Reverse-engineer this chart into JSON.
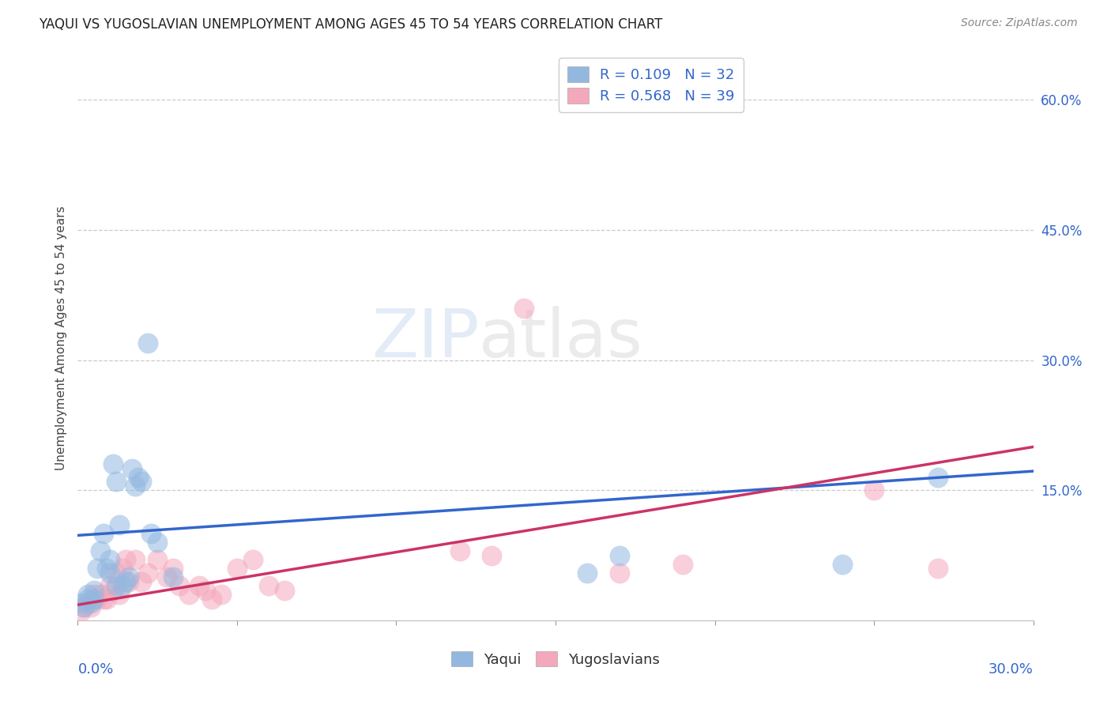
{
  "title": "YAQUI VS YUGOSLAVIAN UNEMPLOYMENT AMONG AGES 45 TO 54 YEARS CORRELATION CHART",
  "source": "Source: ZipAtlas.com",
  "ylabel": "Unemployment Among Ages 45 to 54 years",
  "legend_yaqui": "R = 0.109   N = 32",
  "legend_yugo": "R = 0.568   N = 39",
  "legend_label_yaqui": "Yaqui",
  "legend_label_yugo": "Yugoslavians",
  "yaqui_color": "#92B8E0",
  "yugo_color": "#F4A8BC",
  "yaqui_line_color": "#3366CC",
  "yugo_line_color": "#CC3366",
  "watermark_zip": "ZIP",
  "watermark_atlas": "atlas",
  "yaqui_x": [
    0.001,
    0.002,
    0.003,
    0.003,
    0.004,
    0.005,
    0.005,
    0.006,
    0.007,
    0.008,
    0.009,
    0.01,
    0.01,
    0.011,
    0.012,
    0.013,
    0.014,
    0.016,
    0.018,
    0.02,
    0.022,
    0.025,
    0.03,
    0.012,
    0.015,
    0.017,
    0.019,
    0.023,
    0.16,
    0.17,
    0.24,
    0.27
  ],
  "yaqui_y": [
    0.02,
    0.015,
    0.025,
    0.03,
    0.02,
    0.035,
    0.025,
    0.06,
    0.08,
    0.1,
    0.06,
    0.055,
    0.07,
    0.18,
    0.16,
    0.11,
    0.04,
    0.05,
    0.155,
    0.16,
    0.32,
    0.09,
    0.05,
    0.04,
    0.045,
    0.175,
    0.165,
    0.1,
    0.055,
    0.075,
    0.065,
    0.165
  ],
  "yugo_x": [
    0.001,
    0.002,
    0.003,
    0.004,
    0.005,
    0.006,
    0.007,
    0.008,
    0.009,
    0.01,
    0.011,
    0.012,
    0.013,
    0.014,
    0.015,
    0.016,
    0.018,
    0.02,
    0.022,
    0.025,
    0.028,
    0.03,
    0.032,
    0.035,
    0.038,
    0.04,
    0.042,
    0.045,
    0.05,
    0.055,
    0.06,
    0.065,
    0.12,
    0.13,
    0.14,
    0.17,
    0.19,
    0.25,
    0.27
  ],
  "yugo_y": [
    0.01,
    0.015,
    0.02,
    0.015,
    0.03,
    0.025,
    0.03,
    0.025,
    0.025,
    0.04,
    0.035,
    0.055,
    0.03,
    0.06,
    0.07,
    0.045,
    0.07,
    0.045,
    0.055,
    0.07,
    0.05,
    0.06,
    0.04,
    0.03,
    0.04,
    0.035,
    0.025,
    0.03,
    0.06,
    0.07,
    0.04,
    0.035,
    0.08,
    0.075,
    0.36,
    0.055,
    0.065,
    0.15,
    0.06
  ],
  "yaqui_line_x0": 0.0,
  "yaqui_line_y0": 0.098,
  "yaqui_line_x1": 0.3,
  "yaqui_line_y1": 0.172,
  "yugo_line_x0": 0.0,
  "yugo_line_y0": 0.018,
  "yugo_line_x1": 0.3,
  "yugo_line_y1": 0.2,
  "xlim": [
    0.0,
    0.3
  ],
  "ylim": [
    0.0,
    0.65
  ],
  "right_ytick_vals": [
    0.15,
    0.3,
    0.45,
    0.6
  ],
  "right_ytick_labels": [
    "15.0%",
    "30.0%",
    "45.0%",
    "60.0%"
  ]
}
